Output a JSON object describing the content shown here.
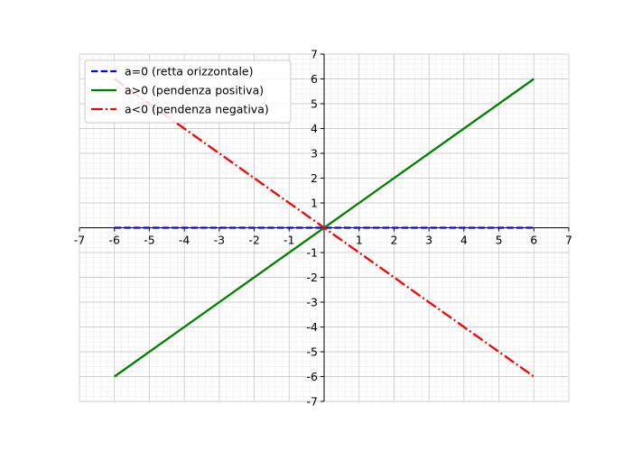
{
  "chart_data": {
    "type": "line",
    "title": "",
    "xlabel": "",
    "ylabel": "",
    "xlim": [
      -7,
      7
    ],
    "ylim": [
      -7,
      7
    ],
    "xticks": [
      -7,
      -6,
      -5,
      -4,
      -3,
      -2,
      -1,
      1,
      2,
      3,
      4,
      5,
      6,
      7
    ],
    "yticks": [
      -7,
      -6,
      -5,
      -4,
      -3,
      -2,
      -1,
      1,
      2,
      3,
      4,
      5,
      6,
      7
    ],
    "grid": {
      "major": true,
      "minor": true
    },
    "axes": "centered",
    "legend_position": "top-left",
    "series": [
      {
        "name": "a=0 (retta orizzontale)",
        "color": "#0000ff",
        "dash": "dashed",
        "x": [
          -6,
          6
        ],
        "y": [
          0,
          0
        ]
      },
      {
        "name": "a>0 (pendenza positiva)",
        "color": "#008000",
        "dash": "solid",
        "x": [
          -6,
          6
        ],
        "y": [
          -6,
          6
        ]
      },
      {
        "name": "a<0 (pendenza negativa)",
        "color": "#ff0000",
        "dash": "dashdot",
        "x": [
          -6,
          6
        ],
        "y": [
          6,
          -6
        ]
      }
    ]
  }
}
